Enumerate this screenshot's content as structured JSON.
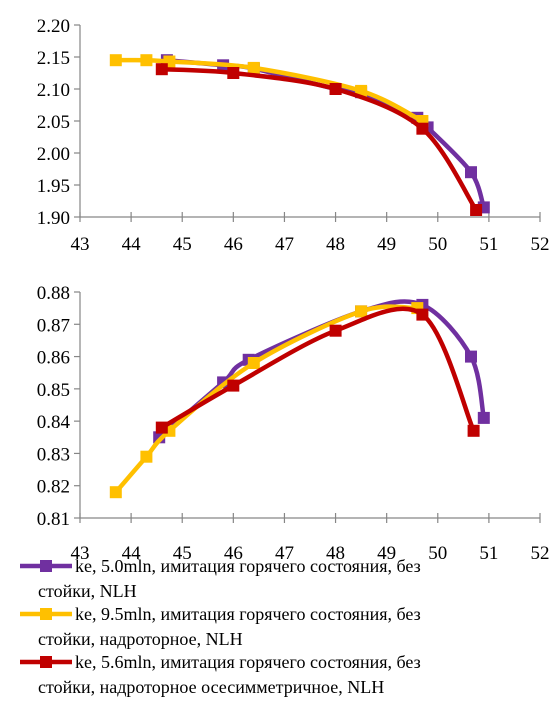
{
  "chart_data": [
    {
      "type": "line",
      "title": "",
      "xlabel": "",
      "ylabel": "",
      "xlim": [
        43,
        52
      ],
      "ylim": [
        1.9,
        2.2
      ],
      "x_ticks": [
        "43",
        "44",
        "45",
        "46",
        "47",
        "48",
        "49",
        "50",
        "51",
        "52"
      ],
      "y_ticks": [
        "1.90",
        "1.95",
        "2.00",
        "2.05",
        "2.10",
        "2.15",
        "2.20"
      ],
      "series": [
        {
          "color": "#7030A0",
          "x": [
            44.7,
            45.8,
            46.4,
            48.0,
            48.5,
            49.6,
            49.8,
            50.65,
            50.9
          ],
          "y": [
            2.145,
            2.137,
            2.132,
            2.1,
            2.095,
            2.055,
            2.04,
            1.97,
            1.915
          ]
        },
        {
          "color": "#FFC000",
          "x": [
            43.7,
            44.3,
            44.75,
            46.4,
            48.5,
            49.7
          ],
          "y": [
            2.145,
            2.145,
            2.143,
            2.133,
            2.097,
            2.05
          ]
        },
        {
          "color": "#C00000",
          "x": [
            44.6,
            46.0,
            48.0,
            49.7,
            50.75
          ],
          "y": [
            2.131,
            2.125,
            2.1,
            2.038,
            1.911
          ]
        }
      ]
    },
    {
      "type": "line",
      "title": "",
      "xlabel": "",
      "ylabel": "",
      "xlim": [
        43,
        52
      ],
      "ylim": [
        0.81,
        0.88
      ],
      "x_ticks": [
        "43",
        "44",
        "45",
        "46",
        "47",
        "48",
        "49",
        "50",
        "51",
        "52"
      ],
      "y_ticks": [
        "0.81",
        "0.82",
        "0.83",
        "0.84",
        "0.85",
        "0.86",
        "0.87",
        "0.88"
      ],
      "series": [
        {
          "color": "#7030A0",
          "x": [
            44.55,
            45.8,
            46.3,
            48.5,
            49.7,
            50.65,
            50.9
          ],
          "y": [
            0.835,
            0.852,
            0.859,
            0.874,
            0.876,
            0.86,
            0.841
          ]
        },
        {
          "color": "#FFC000",
          "x": [
            43.7,
            44.3,
            44.75,
            46.4,
            48.5,
            49.6
          ],
          "y": [
            0.818,
            0.829,
            0.837,
            0.858,
            0.874,
            0.875
          ]
        },
        {
          "color": "#C00000",
          "x": [
            44.6,
            46.0,
            48.0,
            49.7,
            50.7
          ],
          "y": [
            0.838,
            0.851,
            0.868,
            0.873,
            0.837
          ]
        }
      ]
    }
  ],
  "legend": {
    "placement": "bottom",
    "items": [
      {
        "color": "#7030A0",
        "lines": [
          "ke, 5.0mln, имитация горячего состояния, без",
          "стойки, NLH"
        ]
      },
      {
        "color": "#FFC000",
        "lines": [
          "ke, 9.5mln, имитация горячего состояния, без",
          "стойки, надроторное, NLH"
        ]
      },
      {
        "color": "#C00000",
        "lines": [
          "ke, 5.6mln, имитация горячего состояния, без",
          "стойки, надроторное осесимметричное, NLH"
        ]
      }
    ]
  }
}
